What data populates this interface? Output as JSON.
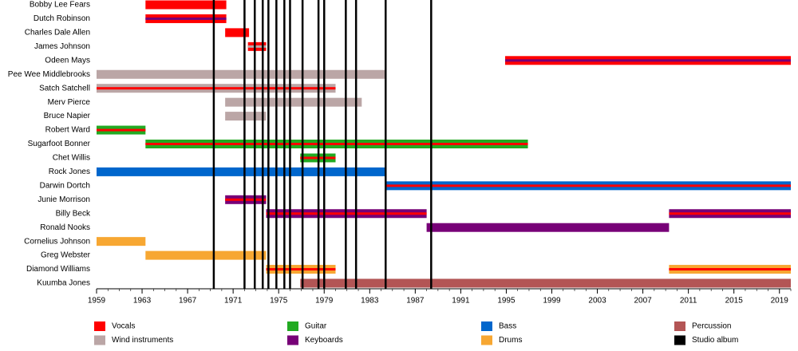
{
  "chart_data": {
    "type": "timeline",
    "xlim": [
      1959,
      2020
    ],
    "xticks": [
      1959,
      1963,
      1967,
      1971,
      1975,
      1979,
      1983,
      1987,
      1991,
      1995,
      1999,
      2003,
      2007,
      2011,
      2015,
      2019
    ],
    "roles": [
      {
        "name": "Vocals",
        "color": "#ff0000"
      },
      {
        "name": "Wind instruments",
        "color": "#bba6a6"
      },
      {
        "name": "Guitar",
        "color": "#22aa22"
      },
      {
        "name": "Keyboards",
        "color": "#770077"
      },
      {
        "name": "Bass",
        "color": "#0066cc"
      },
      {
        "name": "Drums",
        "color": "#f7a732"
      },
      {
        "name": "Percussion",
        "color": "#b35555"
      },
      {
        "name": "Studio album",
        "color": "#000000"
      }
    ],
    "members": [
      {
        "name": "Bobby Lee Fears",
        "periods": [
          {
            "start": 1963.3,
            "end": 1970.4,
            "roles": [
              "Vocals"
            ]
          }
        ]
      },
      {
        "name": "Dutch Robinson",
        "periods": [
          {
            "start": 1963.3,
            "end": 1970.4,
            "roles": [
              "Vocals",
              "Keyboards"
            ]
          }
        ]
      },
      {
        "name": "Charles Dale Allen",
        "periods": [
          {
            "start": 1970.3,
            "end": 1972.4,
            "roles": [
              "Vocals"
            ]
          }
        ]
      },
      {
        "name": "James Johnson",
        "periods": [
          {
            "start": 1972.3,
            "end": 1973.9,
            "roles": [
              "Vocals",
              "Wind instruments"
            ]
          }
        ]
      },
      {
        "name": "Odeen Mays",
        "periods": [
          {
            "start": 1994.9,
            "end": 2020,
            "roles": [
              "Vocals",
              "Keyboards"
            ]
          }
        ]
      },
      {
        "name": "Pee Wee Middlebrooks",
        "periods": [
          {
            "start": 1959,
            "end": 1984.4,
            "roles": [
              "Wind instruments"
            ]
          }
        ]
      },
      {
        "name": "Satch Satchell",
        "periods": [
          {
            "start": 1959,
            "end": 1980.0,
            "roles": [
              "Wind instruments",
              "Vocals"
            ]
          }
        ]
      },
      {
        "name": "Merv Pierce",
        "periods": [
          {
            "start": 1970.3,
            "end": 1982.3,
            "roles": [
              "Wind instruments"
            ]
          }
        ]
      },
      {
        "name": "Bruce Napier",
        "periods": [
          {
            "start": 1970.3,
            "end": 1973.9,
            "roles": [
              "Wind instruments"
            ]
          }
        ]
      },
      {
        "name": "Robert Ward",
        "periods": [
          {
            "start": 1959,
            "end": 1963.3,
            "roles": [
              "Guitar",
              "Vocals"
            ]
          }
        ]
      },
      {
        "name": "Sugarfoot Bonner",
        "periods": [
          {
            "start": 1963.3,
            "end": 1996.9,
            "roles": [
              "Guitar",
              "Vocals"
            ]
          }
        ]
      },
      {
        "name": "Chet Willis",
        "periods": [
          {
            "start": 1976.9,
            "end": 1980.0,
            "roles": [
              "Guitar",
              "Vocals"
            ]
          }
        ]
      },
      {
        "name": "Rock Jones",
        "periods": [
          {
            "start": 1959,
            "end": 1984.4,
            "roles": [
              "Bass"
            ]
          }
        ]
      },
      {
        "name": "Darwin Dortch",
        "periods": [
          {
            "start": 1984.4,
            "end": 2020,
            "roles": [
              "Bass",
              "Vocals"
            ]
          }
        ]
      },
      {
        "name": "Junie Morrison",
        "periods": [
          {
            "start": 1970.3,
            "end": 1973.9,
            "roles": [
              "Keyboards",
              "Vocals"
            ]
          }
        ]
      },
      {
        "name": "Billy Beck",
        "periods": [
          {
            "start": 1973.9,
            "end": 1988.0,
            "roles": [
              "Keyboards",
              "Vocals"
            ]
          },
          {
            "start": 2009.3,
            "end": 2020,
            "roles": [
              "Keyboards",
              "Vocals"
            ]
          }
        ]
      },
      {
        "name": "Ronald Nooks",
        "periods": [
          {
            "start": 1988.0,
            "end": 2009.3,
            "roles": [
              "Keyboards"
            ]
          }
        ]
      },
      {
        "name": "Cornelius Johnson",
        "periods": [
          {
            "start": 1959,
            "end": 1963.3,
            "roles": [
              "Drums"
            ]
          }
        ]
      },
      {
        "name": "Greg Webster",
        "periods": [
          {
            "start": 1963.3,
            "end": 1973.9,
            "roles": [
              "Drums"
            ]
          }
        ]
      },
      {
        "name": "Diamond Williams",
        "periods": [
          {
            "start": 1973.9,
            "end": 1980.0,
            "roles": [
              "Drums",
              "Vocals"
            ]
          },
          {
            "start": 2009.3,
            "end": 2020,
            "roles": [
              "Drums",
              "Vocals"
            ]
          }
        ]
      },
      {
        "name": "Kuumba Jones",
        "periods": [
          {
            "start": 1976.9,
            "end": 2020,
            "roles": [
              "Percussion"
            ]
          }
        ]
      }
    ],
    "albums": [
      1969.3,
      1972.0,
      1972.9,
      1973.6,
      1974.1,
      1974.8,
      1975.5,
      1976.0,
      1977.1,
      1978.5,
      1979.0,
      1980.9,
      1981.8,
      1984.4,
      1988.4
    ]
  }
}
